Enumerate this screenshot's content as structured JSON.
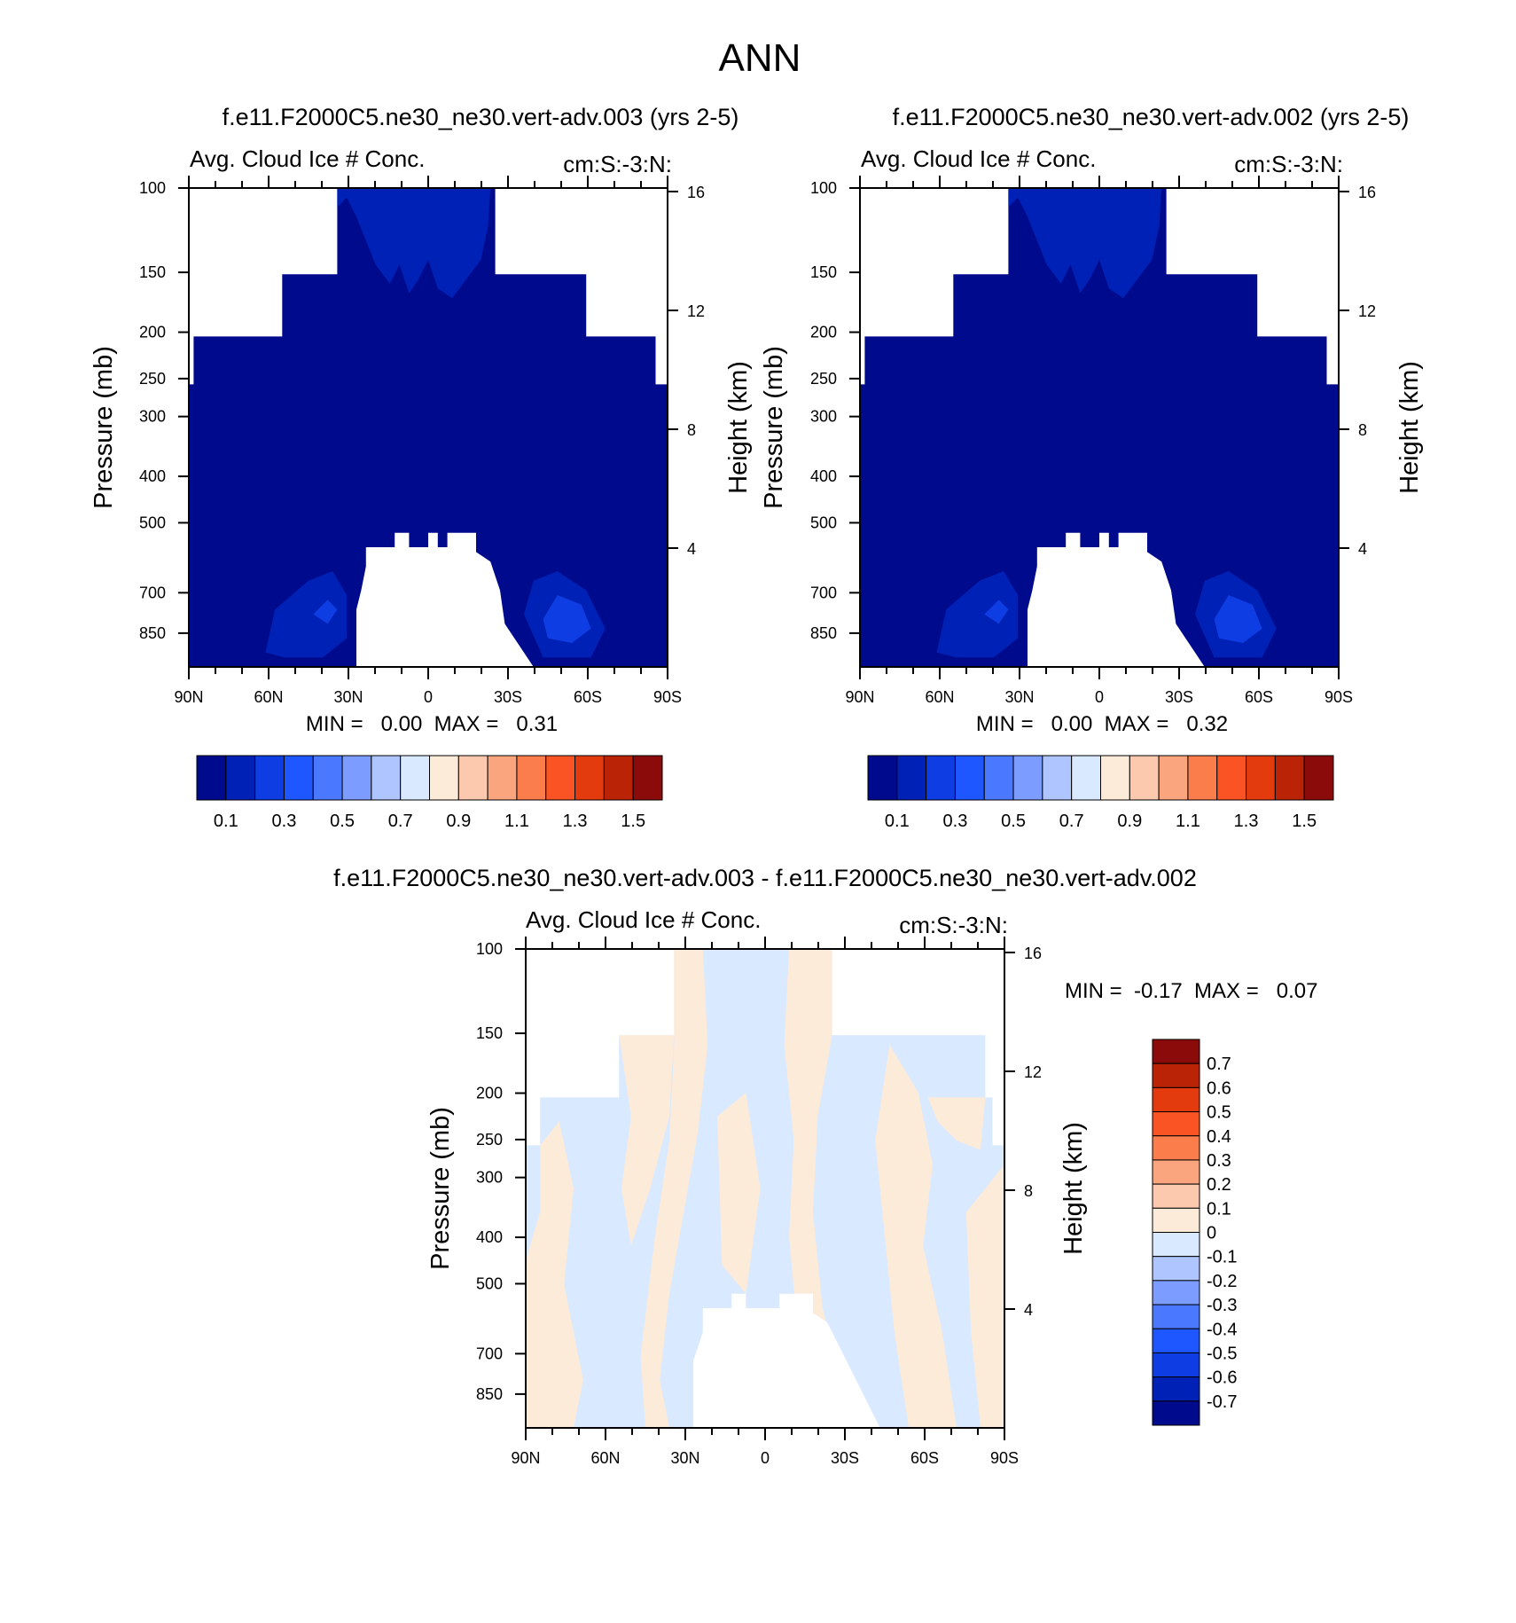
{
  "figure": {
    "title": "ANN",
    "diff_title": "f.e11.F2000C5.ne30_ne30.vert-adv.003 - f.e11.F2000C5.ne30_ne30.vert-adv.002"
  },
  "chart_data": [
    {
      "type": "heatmap",
      "case_title": "f.e11.F2000C5.ne30_ne30.vert-adv.003 (yrs 2-5)",
      "title": "Avg. Cloud Ice # Conc.",
      "units": "cm:S:-3:N:",
      "ylabel": "Pressure (mb)",
      "y2label": "Height (km)",
      "x_ticks": [
        "90N",
        "60N",
        "30N",
        "0",
        "30S",
        "60S",
        "90S"
      ],
      "y_ticks": [
        100,
        150,
        200,
        250,
        300,
        400,
        500,
        700,
        850
      ],
      "y2_ticks": [
        16,
        12,
        8,
        4
      ],
      "min_label": "MIN =   0.00  MAX =   0.31",
      "min": 0.0,
      "max": 0.31,
      "colorbar": {
        "labels": [
          "0.1",
          "0.3",
          "0.5",
          "0.7",
          "0.9",
          "1.1",
          "1.3",
          "1.5"
        ],
        "levels": [
          0.1,
          0.2,
          0.3,
          0.4,
          0.5,
          0.6,
          0.7,
          0.8,
          0.9,
          1.0,
          1.1,
          1.2,
          1.3,
          1.4,
          1.5
        ],
        "colors": [
          "#000a8c",
          "#0021b5",
          "#0e3ee3",
          "#1e56ff",
          "#4a78ff",
          "#7d9cff",
          "#afc5ff",
          "#d9e9ff",
          "#fdebd9",
          "#fcc9ae",
          "#fba57f",
          "#fb7d4c",
          "#fa5425",
          "#e33a0e",
          "#bb2307",
          "#8b0b0b"
        ]
      },
      "max_region": "0.2-0.3 cm^-3 near 45S, 700 mb"
    },
    {
      "type": "heatmap",
      "case_title": "f.e11.F2000C5.ne30_ne30.vert-adv.002 (yrs 2-5)",
      "title": "Avg. Cloud Ice # Conc.",
      "units": "cm:S:-3:N:",
      "ylabel": "Pressure (mb)",
      "y2label": "Height (km)",
      "x_ticks": [
        "90N",
        "60N",
        "30N",
        "0",
        "30S",
        "60S",
        "90S"
      ],
      "y_ticks": [
        100,
        150,
        200,
        250,
        300,
        400,
        500,
        700,
        850
      ],
      "y2_ticks": [
        16,
        12,
        8,
        4
      ],
      "min_label": "MIN =   0.00  MAX =   0.32",
      "min": 0.0,
      "max": 0.32,
      "colorbar": {
        "labels": [
          "0.1",
          "0.3",
          "0.5",
          "0.7",
          "0.9",
          "1.1",
          "1.3",
          "1.5"
        ],
        "levels": [
          0.1,
          0.2,
          0.3,
          0.4,
          0.5,
          0.6,
          0.7,
          0.8,
          0.9,
          1.0,
          1.1,
          1.2,
          1.3,
          1.4,
          1.5
        ],
        "colors": [
          "#000a8c",
          "#0021b5",
          "#0e3ee3",
          "#1e56ff",
          "#4a78ff",
          "#7d9cff",
          "#afc5ff",
          "#d9e9ff",
          "#fdebd9",
          "#fcc9ae",
          "#fba57f",
          "#fb7d4c",
          "#fa5425",
          "#e33a0e",
          "#bb2307",
          "#8b0b0b"
        ]
      },
      "max_region": "0.2-0.3 cm^-3 near 45S, 700 mb"
    },
    {
      "type": "heatmap",
      "title": "Avg. Cloud Ice # Conc.",
      "units": "cm:S:-3:N:",
      "ylabel": "Pressure (mb)",
      "y2label": "Height (km)",
      "x_ticks": [
        "90N",
        "60N",
        "30N",
        "0",
        "30S",
        "60S",
        "90S"
      ],
      "y_ticks": [
        100,
        150,
        200,
        250,
        300,
        400,
        500,
        700,
        850
      ],
      "y2_ticks": [
        16,
        12,
        8,
        4
      ],
      "min_label": "MIN =  -0.17  MAX =   0.07",
      "min": -0.17,
      "max": 0.07,
      "colorbar": {
        "labels": [
          "0.7",
          "0.6",
          "0.5",
          "0.4",
          "0.3",
          "0.2",
          "0.1",
          "0",
          "-0.1",
          "-0.2",
          "-0.3",
          "-0.4",
          "-0.5",
          "-0.6",
          "-0.7"
        ],
        "levels": [
          0.7,
          0.6,
          0.5,
          0.4,
          0.3,
          0.2,
          0.1,
          0,
          -0.1,
          -0.2,
          -0.3,
          -0.4,
          -0.5,
          -0.6,
          -0.7
        ],
        "colors": [
          "#8b0b0b",
          "#bb2307",
          "#e33a0e",
          "#fa5425",
          "#fb7d4c",
          "#fba57f",
          "#fcc9ae",
          "#fdebd9",
          "#d9e9ff",
          "#afc5ff",
          "#7d9cff",
          "#4a78ff",
          "#1e56ff",
          "#0e3ee3",
          "#0021b5",
          "#000a8c"
        ]
      },
      "field_colors": {
        "positive": "#fdebd9",
        "negative": "#d9e9ff"
      }
    }
  ]
}
